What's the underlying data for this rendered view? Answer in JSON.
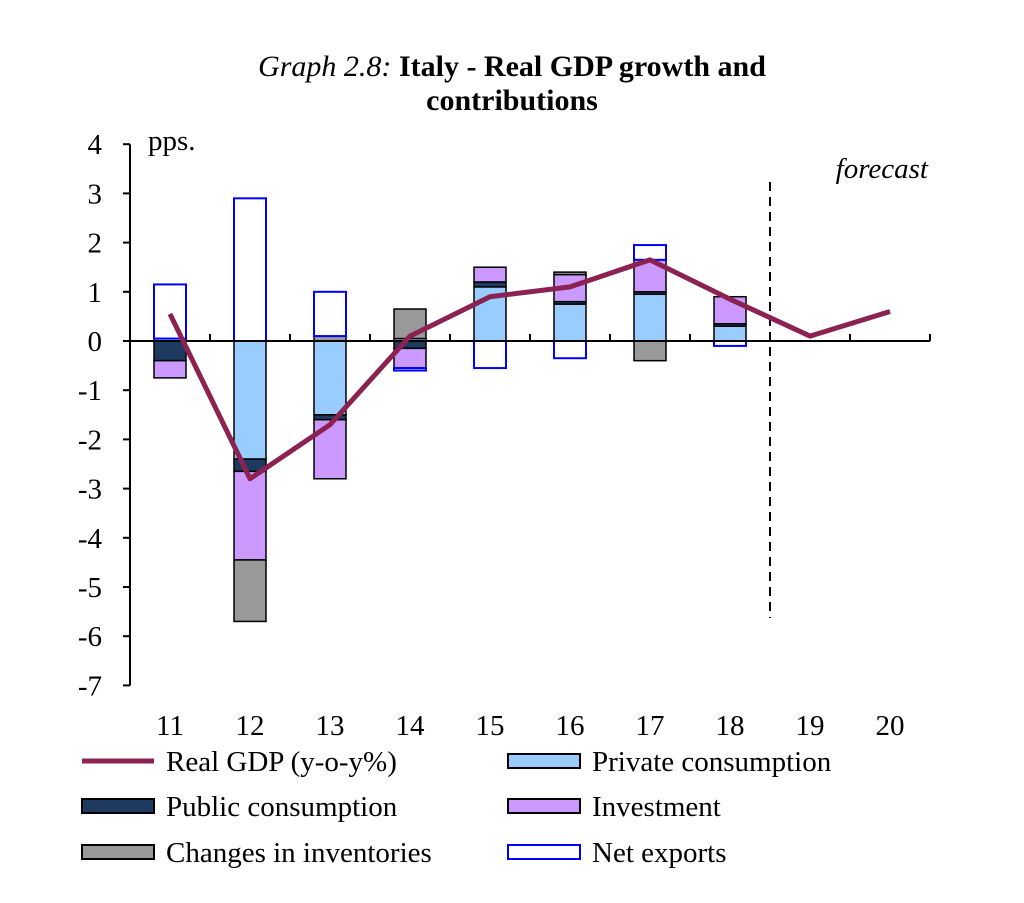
{
  "header": {
    "title_prefix": "Graph 2.8:",
    "title_main": "Italy - Real GDP growth and",
    "title_line2": "contributions"
  },
  "chart_data": {
    "type": "bar",
    "stacked": true,
    "ylabel": "pps.",
    "ylim": [
      -7,
      4
    ],
    "yticks": [
      4,
      3,
      2,
      1,
      0,
      -1,
      -2,
      -3,
      -4,
      -5,
      -6,
      -7
    ],
    "categories": [
      "11",
      "12",
      "13",
      "14",
      "15",
      "16",
      "17",
      "18",
      "19",
      "20"
    ],
    "forecast_label": "forecast",
    "forecast_starts_after": "18",
    "series": [
      {
        "name": "Private consumption",
        "kind": "bar",
        "color": "#99CCFF",
        "stroke": "#000000",
        "values": [
          0.05,
          -2.4,
          -1.5,
          0.05,
          1.1,
          0.75,
          0.95,
          0.3,
          null,
          null
        ]
      },
      {
        "name": "Public consumption",
        "kind": "bar",
        "color": "#1F3A5F",
        "stroke": "#000000",
        "values": [
          -0.4,
          -0.25,
          -0.1,
          -0.15,
          0.1,
          0.05,
          0.05,
          0.05,
          null,
          null
        ]
      },
      {
        "name": "Investment",
        "kind": "bar",
        "color": "#CC99FF",
        "stroke": "#000000",
        "values": [
          -0.35,
          -1.8,
          -1.2,
          -0.4,
          0.3,
          0.55,
          0.65,
          0.55,
          null,
          null
        ]
      },
      {
        "name": "Changes in inventories",
        "kind": "bar",
        "color": "#999999",
        "stroke": "#000000",
        "values": [
          0.0,
          -1.25,
          0.1,
          0.6,
          0.0,
          0.05,
          -0.4,
          0.0,
          null,
          null
        ]
      },
      {
        "name": "Net exports",
        "kind": "bar",
        "color": "#FFFFFF",
        "stroke": "#0000FF",
        "values": [
          1.1,
          2.9,
          0.9,
          -0.05,
          -0.55,
          -0.35,
          0.3,
          -0.1,
          null,
          null
        ]
      },
      {
        "name": "Real GDP (y-o-y%)",
        "kind": "line",
        "color": "#8B2252",
        "values": [
          0.55,
          -2.8,
          -1.7,
          0.1,
          0.9,
          1.1,
          1.65,
          0.85,
          0.1,
          0.6
        ]
      }
    ],
    "legend": {
      "placement": "bottom",
      "entries": [
        "Real GDP (y-o-y%)",
        "Private consumption",
        "Public consumption",
        "Investment",
        "Changes in inventories",
        "Net exports"
      ]
    }
  }
}
